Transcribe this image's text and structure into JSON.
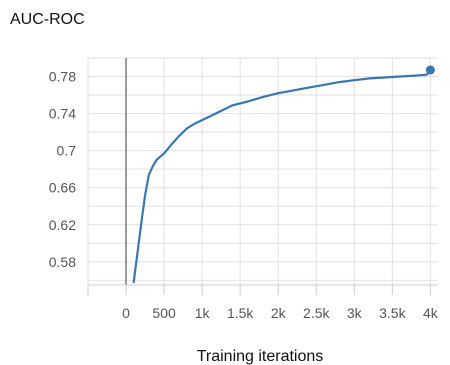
{
  "chart_data": {
    "type": "line",
    "title": "AUC-ROC",
    "xlabel": "Training iterations",
    "ylabel": "",
    "xlim": [
      -500,
      4100
    ],
    "ylim": [
      0.555,
      0.8
    ],
    "x_ticks": [
      0,
      500,
      1000,
      1500,
      2000,
      2500,
      3000,
      3500,
      4000
    ],
    "x_tick_labels": [
      "0",
      "500",
      "1k",
      "1.5k",
      "2k",
      "2.5k",
      "3k",
      "3.5k",
      "4k"
    ],
    "y_ticks": [
      0.58,
      0.62,
      0.66,
      0.7,
      0.74,
      0.78
    ],
    "y_tick_labels": [
      "0.58",
      "0.62",
      "0.66",
      "0.7",
      "0.74",
      "0.78"
    ],
    "grid": true,
    "series": [
      {
        "color": "#3a76b0",
        "x": [
          100,
          150,
          200,
          250,
          300,
          350,
          400,
          500,
          600,
          700,
          800,
          900,
          1000,
          1200,
          1400,
          1600,
          1800,
          2000,
          2200,
          2400,
          2600,
          2800,
          3000,
          3200,
          3400,
          3600,
          3800,
          3950,
          4000
        ],
        "y": [
          0.558,
          0.59,
          0.622,
          0.652,
          0.674,
          0.683,
          0.69,
          0.697,
          0.707,
          0.716,
          0.724,
          0.729,
          0.733,
          0.741,
          0.749,
          0.753,
          0.758,
          0.762,
          0.765,
          0.768,
          0.771,
          0.774,
          0.776,
          0.778,
          0.779,
          0.78,
          0.781,
          0.782,
          0.787
        ]
      }
    ],
    "colors": {
      "line": "#3a76b0",
      "grid": "#e2e2e2",
      "zero_line": "#9a9a9a"
    }
  }
}
